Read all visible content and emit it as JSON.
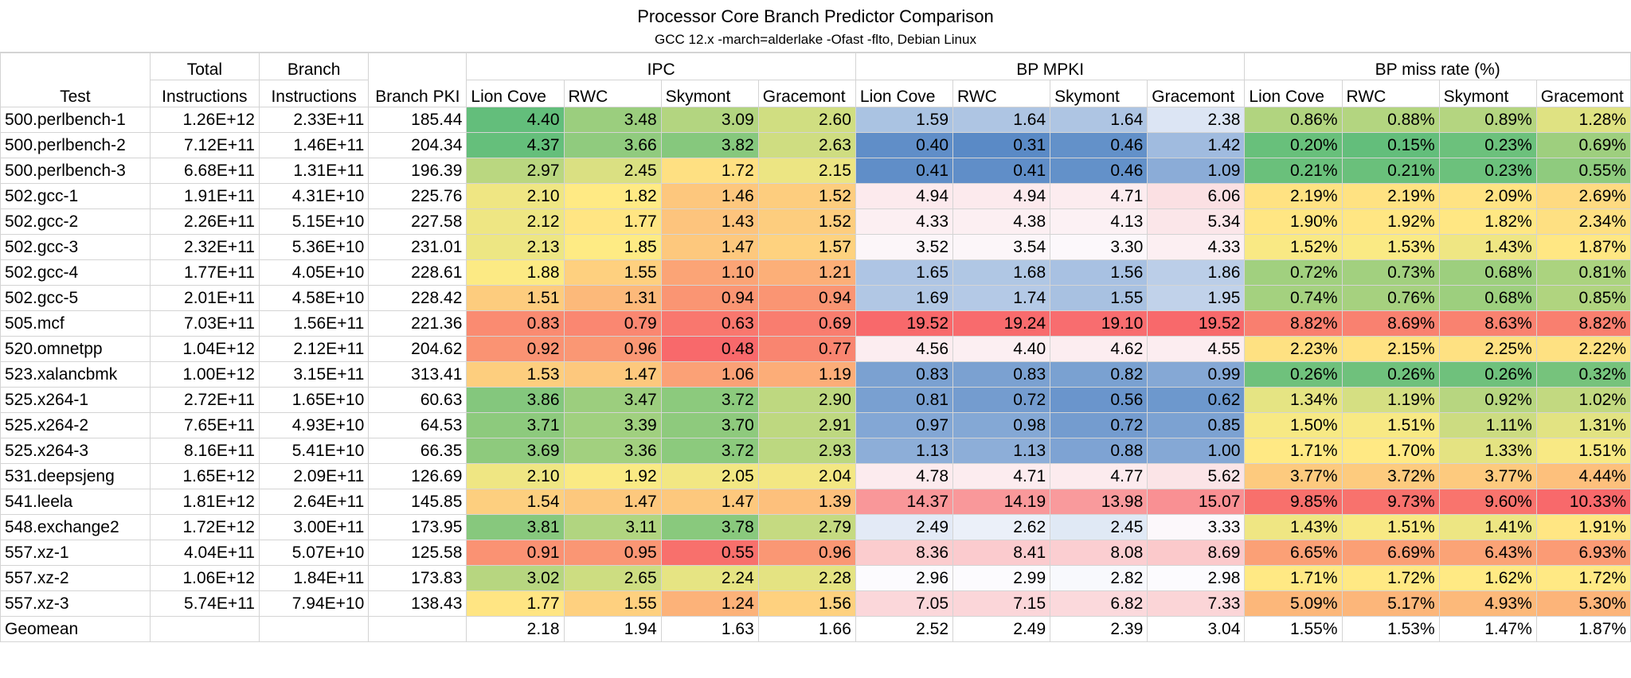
{
  "chart_data": {
    "type": "table",
    "title": "Processor Core Branch Predictor Comparison",
    "subtitle": "GCC 12.x -march=alderlake -Ofast -flto, Debian Linux",
    "headers": {
      "test": "Test",
      "total_1": "Total",
      "total_2": "Instructions",
      "branch_1": "Branch",
      "branch_2": "Instructions",
      "branch_pki": "Branch PKI",
      "groups": [
        "IPC",
        "BP MPKI",
        "BP miss rate (%)"
      ],
      "cores": [
        "Lion Cove",
        "RWC",
        "Skymont",
        "Gracemont"
      ]
    },
    "rows": [
      {
        "test": "500.perlbench-1",
        "total": "1.26E+12",
        "branch": "2.33E+11",
        "pki": "185.44",
        "ipc": [
          4.4,
          3.48,
          3.09,
          2.6
        ],
        "mpki": [
          1.59,
          1.64,
          1.64,
          2.38
        ],
        "miss": [
          0.86,
          0.88,
          0.89,
          1.28
        ]
      },
      {
        "test": "500.perlbench-2",
        "total": "7.12E+11",
        "branch": "1.46E+11",
        "pki": "204.34",
        "ipc": [
          4.37,
          3.66,
          3.82,
          2.63
        ],
        "mpki": [
          0.4,
          0.31,
          0.46,
          1.42
        ],
        "miss": [
          0.2,
          0.15,
          0.23,
          0.69
        ]
      },
      {
        "test": "500.perlbench-3",
        "total": "6.68E+11",
        "branch": "1.31E+11",
        "pki": "196.39",
        "ipc": [
          2.97,
          2.45,
          1.72,
          2.15
        ],
        "mpki": [
          0.41,
          0.41,
          0.46,
          1.09
        ],
        "miss": [
          0.21,
          0.21,
          0.23,
          0.55
        ]
      },
      {
        "test": "502.gcc-1",
        "total": "1.91E+11",
        "branch": "4.31E+10",
        "pki": "225.76",
        "ipc": [
          2.1,
          1.82,
          1.46,
          1.52
        ],
        "mpki": [
          4.94,
          4.94,
          4.71,
          6.06
        ],
        "miss": [
          2.19,
          2.19,
          2.09,
          2.69
        ]
      },
      {
        "test": "502.gcc-2",
        "total": "2.26E+11",
        "branch": "5.15E+10",
        "pki": "227.58",
        "ipc": [
          2.12,
          1.77,
          1.43,
          1.52
        ],
        "mpki": [
          4.33,
          4.38,
          4.13,
          5.34
        ],
        "miss": [
          1.9,
          1.92,
          1.82,
          2.34
        ]
      },
      {
        "test": "502.gcc-3",
        "total": "2.32E+11",
        "branch": "5.36E+10",
        "pki": "231.01",
        "ipc": [
          2.13,
          1.85,
          1.47,
          1.57
        ],
        "mpki": [
          3.52,
          3.54,
          3.3,
          4.33
        ],
        "miss": [
          1.52,
          1.53,
          1.43,
          1.87
        ]
      },
      {
        "test": "502.gcc-4",
        "total": "1.77E+11",
        "branch": "4.05E+10",
        "pki": "228.61",
        "ipc": [
          1.88,
          1.55,
          1.1,
          1.21
        ],
        "mpki": [
          1.65,
          1.68,
          1.56,
          1.86
        ],
        "miss": [
          0.72,
          0.73,
          0.68,
          0.81
        ]
      },
      {
        "test": "502.gcc-5",
        "total": "2.01E+11",
        "branch": "4.58E+10",
        "pki": "228.42",
        "ipc": [
          1.51,
          1.31,
          0.94,
          0.94
        ],
        "mpki": [
          1.69,
          1.74,
          1.55,
          1.95
        ],
        "miss": [
          0.74,
          0.76,
          0.68,
          0.85
        ]
      },
      {
        "test": "505.mcf",
        "total": "7.03E+11",
        "branch": "1.56E+11",
        "pki": "221.36",
        "ipc": [
          0.83,
          0.79,
          0.63,
          0.69
        ],
        "mpki": [
          19.52,
          19.24,
          19.1,
          19.52
        ],
        "miss": [
          8.82,
          8.69,
          8.63,
          8.82
        ]
      },
      {
        "test": "520.omnetpp",
        "total": "1.04E+12",
        "branch": "2.12E+11",
        "pki": "204.62",
        "ipc": [
          0.92,
          0.96,
          0.48,
          0.77
        ],
        "mpki": [
          4.56,
          4.4,
          4.62,
          4.55
        ],
        "miss": [
          2.23,
          2.15,
          2.25,
          2.22
        ]
      },
      {
        "test": "523.xalancbmk",
        "total": "1.00E+12",
        "branch": "3.15E+11",
        "pki": "313.41",
        "ipc": [
          1.53,
          1.47,
          1.06,
          1.19
        ],
        "mpki": [
          0.83,
          0.83,
          0.82,
          0.99
        ],
        "miss": [
          0.26,
          0.26,
          0.26,
          0.32
        ]
      },
      {
        "test": "525.x264-1",
        "total": "2.72E+11",
        "branch": "1.65E+10",
        "pki": "60.63",
        "ipc": [
          3.86,
          3.47,
          3.72,
          2.9
        ],
        "mpki": [
          0.81,
          0.72,
          0.56,
          0.62
        ],
        "miss": [
          1.34,
          1.19,
          0.92,
          1.02
        ]
      },
      {
        "test": "525.x264-2",
        "total": "7.65E+11",
        "branch": "4.93E+10",
        "pki": "64.53",
        "ipc": [
          3.71,
          3.39,
          3.7,
          2.91
        ],
        "mpki": [
          0.97,
          0.98,
          0.72,
          0.85
        ],
        "miss": [
          1.5,
          1.51,
          1.11,
          1.31
        ]
      },
      {
        "test": "525.x264-3",
        "total": "8.16E+11",
        "branch": "5.41E+10",
        "pki": "66.35",
        "ipc": [
          3.69,
          3.36,
          3.72,
          2.93
        ],
        "mpki": [
          1.13,
          1.13,
          0.88,
          1.0
        ],
        "miss": [
          1.71,
          1.7,
          1.33,
          1.51
        ]
      },
      {
        "test": "531.deepsjeng",
        "total": "1.65E+12",
        "branch": "2.09E+11",
        "pki": "126.69",
        "ipc": [
          2.1,
          1.92,
          2.05,
          2.04
        ],
        "mpki": [
          4.78,
          4.71,
          4.77,
          5.62
        ],
        "miss": [
          3.77,
          3.72,
          3.77,
          4.44
        ]
      },
      {
        "test": "541.leela",
        "total": "1.81E+12",
        "branch": "2.64E+11",
        "pki": "145.85",
        "ipc": [
          1.54,
          1.47,
          1.47,
          1.39
        ],
        "mpki": [
          14.37,
          14.19,
          13.98,
          15.07
        ],
        "miss": [
          9.85,
          9.73,
          9.6,
          10.33
        ]
      },
      {
        "test": "548.exchange2",
        "total": "1.72E+12",
        "branch": "3.00E+11",
        "pki": "173.95",
        "ipc": [
          3.81,
          3.11,
          3.78,
          2.79
        ],
        "mpki": [
          2.49,
          2.62,
          2.45,
          3.33
        ],
        "miss": [
          1.43,
          1.51,
          1.41,
          1.91
        ]
      },
      {
        "test": "557.xz-1",
        "total": "4.04E+11",
        "branch": "5.07E+10",
        "pki": "125.58",
        "ipc": [
          0.91,
          0.95,
          0.55,
          0.96
        ],
        "mpki": [
          8.36,
          8.41,
          8.08,
          8.69
        ],
        "miss": [
          6.65,
          6.69,
          6.43,
          6.93
        ]
      },
      {
        "test": "557.xz-2",
        "total": "1.06E+12",
        "branch": "1.84E+11",
        "pki": "173.83",
        "ipc": [
          3.02,
          2.65,
          2.24,
          2.28
        ],
        "mpki": [
          2.96,
          2.99,
          2.82,
          2.98
        ],
        "miss": [
          1.71,
          1.72,
          1.62,
          1.72
        ]
      },
      {
        "test": "557.xz-3",
        "total": "5.74E+11",
        "branch": "7.94E+10",
        "pki": "138.43",
        "ipc": [
          1.77,
          1.55,
          1.24,
          1.56
        ],
        "mpki": [
          7.05,
          7.15,
          6.82,
          7.33
        ],
        "miss": [
          5.09,
          5.17,
          4.93,
          5.3
        ]
      }
    ],
    "geomean": {
      "test": "Geomean",
      "ipc": [
        2.18,
        1.94,
        1.63,
        1.66
      ],
      "mpki": [
        2.52,
        2.49,
        2.39,
        3.04
      ],
      "miss": [
        1.55,
        1.53,
        1.47,
        1.87
      ]
    },
    "color_scales": {
      "ipc": {
        "low": "#f8696b",
        "mid": "#ffeb84",
        "high": "#63be7b"
      },
      "mpki": {
        "low": "#5a8ac6",
        "mid": "#fcfcff",
        "high": "#f8696b"
      },
      "miss": {
        "low": "#63be7b",
        "mid": "#ffeb84",
        "high": "#f8696b"
      }
    }
  }
}
